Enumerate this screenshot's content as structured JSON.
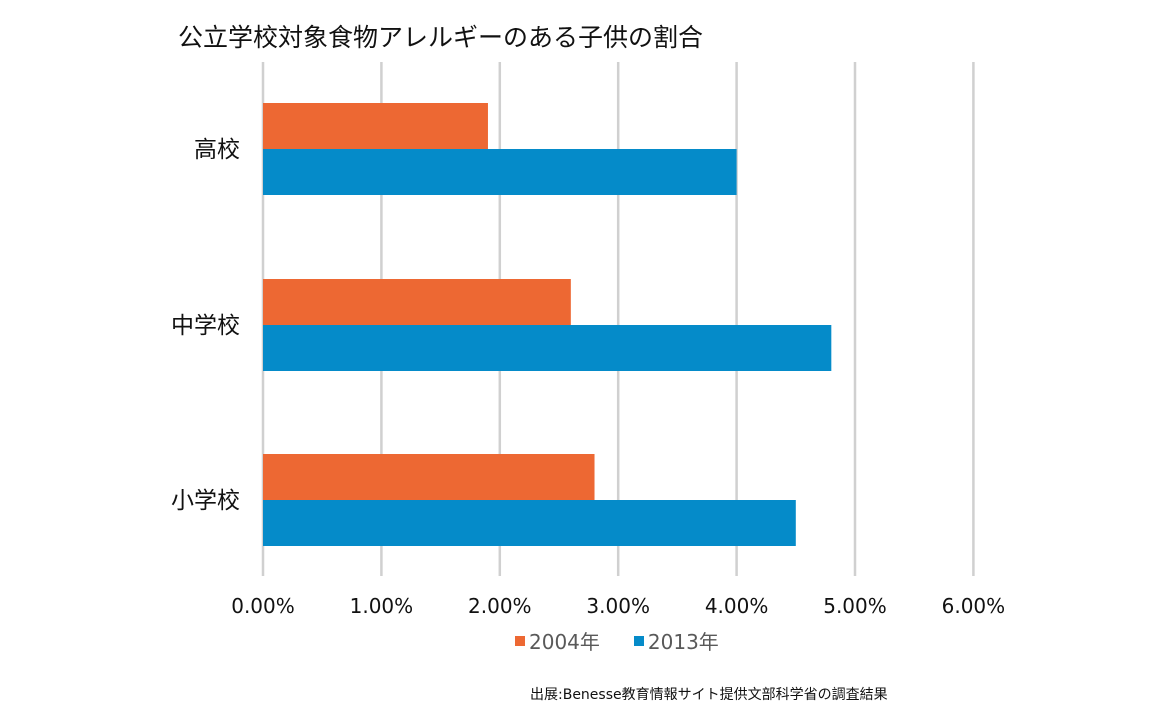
{
  "chart_data": {
    "type": "bar",
    "orientation": "horizontal",
    "title": "公立学校対象食物アレルギーのある子供の割合",
    "categories": [
      "高校",
      "中学校",
      "小学校"
    ],
    "series": [
      {
        "name": "2004年",
        "values": [
          1.9,
          2.6,
          2.8
        ],
        "color": "#ED6833"
      },
      {
        "name": "2013年",
        "values": [
          4.0,
          4.8,
          4.5
        ],
        "color": "#058BC9"
      }
    ],
    "xlim": [
      0,
      6
    ],
    "xticks": [
      "0.00%",
      "1.00%",
      "2.00%",
      "3.00%",
      "4.00%",
      "5.00%",
      "6.00%"
    ],
    "xlabel": "",
    "ylabel": "",
    "grid": "vertical",
    "legend": "bottom",
    "source": "出展:Benesse教育情報サイト提供文部科学省の調査結果"
  }
}
